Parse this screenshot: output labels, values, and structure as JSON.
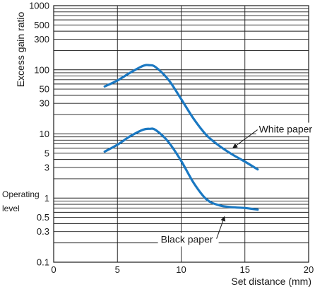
{
  "chart_data": {
    "type": "line",
    "title": "",
    "xlabel": "Set distance (mm)",
    "ylabel": "Excess gain ratio",
    "xlim": [
      0,
      20
    ],
    "ylim": [
      0.1,
      1000
    ],
    "y_scale": "log",
    "grid": true,
    "x_ticks": [
      0,
      5,
      10,
      15,
      20
    ],
    "y_tick_labels": [
      {
        "value": 1000,
        "label": "1000"
      },
      {
        "value": 500,
        "label": "500"
      },
      {
        "value": 300,
        "label": "300"
      },
      {
        "value": 100,
        "label": "100"
      },
      {
        "value": 50,
        "label": "50"
      },
      {
        "value": 30,
        "label": "30"
      },
      {
        "value": 10,
        "label": "10"
      },
      {
        "value": 5,
        "label": "5"
      },
      {
        "value": 3,
        "label": "3"
      },
      {
        "value": 1,
        "label": "1"
      },
      {
        "value": 0.5,
        "label": "0.5"
      },
      {
        "value": 0.3,
        "label": "0.3"
      },
      {
        "value": 0.1,
        "label": "0.1"
      }
    ],
    "y_grid_values": [
      0.2,
      0.3,
      0.4,
      0.5,
      0.6,
      0.7,
      0.8,
      0.9,
      1,
      2,
      3,
      4,
      5,
      6,
      7,
      8,
      9,
      10,
      20,
      30,
      40,
      50,
      60,
      70,
      80,
      90,
      100,
      200,
      300,
      400,
      500,
      600,
      700,
      800,
      900,
      1000
    ],
    "operating_level": {
      "label_line1": "Operating",
      "label_line2": "level",
      "value": 1
    },
    "series_color": "#1a78c2",
    "series": [
      {
        "name": "White paper",
        "x": [
          4,
          5,
          6,
          7,
          7.5,
          8,
          9,
          10,
          11,
          12,
          13,
          14,
          15,
          16
        ],
        "y": [
          55,
          68,
          90,
          115,
          118,
          110,
          70,
          35,
          17,
          9.5,
          6.5,
          4.8,
          3.7,
          2.8
        ],
        "label": {
          "text": "White paper",
          "at_x": 14,
          "at_y": 5.6,
          "text_x": 16.1,
          "text_y": 10.5
        }
      },
      {
        "name": "Black paper",
        "x": [
          4,
          5,
          6,
          7,
          7.5,
          8,
          9,
          10,
          11,
          12,
          13,
          14,
          15,
          16
        ],
        "y": [
          5.3,
          6.8,
          9.2,
          11.6,
          12,
          11.5,
          7.5,
          3.8,
          1.7,
          0.95,
          0.77,
          0.72,
          0.7,
          0.66
        ],
        "label": {
          "text": "Black paper",
          "at_x": 13.4,
          "at_y": 0.54,
          "text_x": 8.4,
          "text_y": 0.2
        }
      }
    ]
  }
}
